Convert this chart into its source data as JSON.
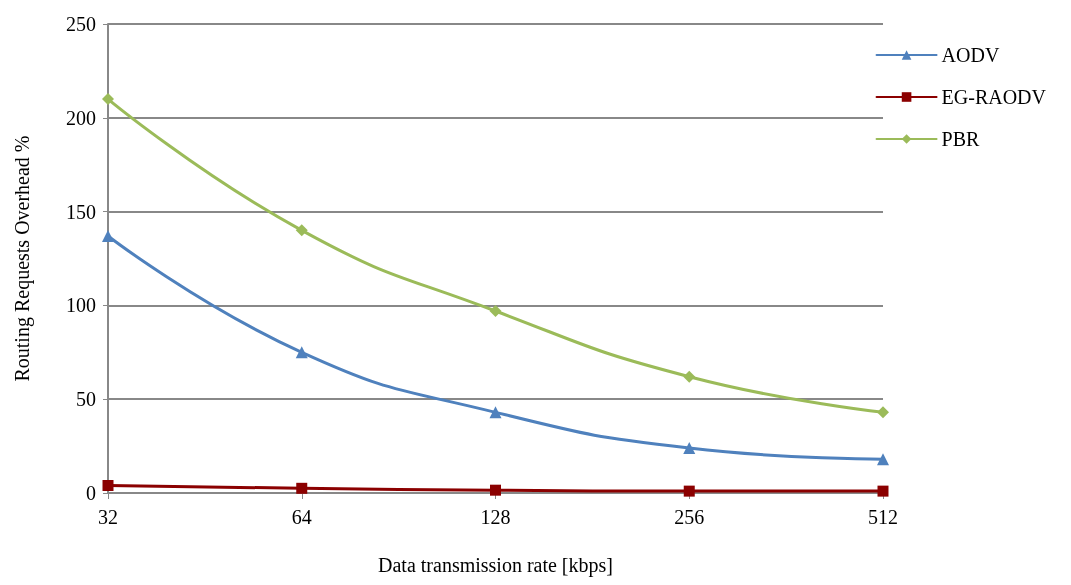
{
  "chart_data": {
    "type": "line",
    "xlabel": "Data transmission rate [kbps]",
    "ylabel": "Routing Requests Overhead %",
    "categories": [
      "32",
      "64",
      "128",
      "256",
      "512"
    ],
    "ylim": [
      0,
      250
    ],
    "yticks": [
      0,
      50,
      100,
      150,
      200,
      250
    ],
    "grid": "y",
    "legend": "right",
    "series": [
      {
        "name": "AODV",
        "color": "#4f81bd",
        "marker": "triangle",
        "values": [
          137,
          75,
          43,
          24,
          18
        ]
      },
      {
        "name": "EG-RAODV",
        "color": "#8b0000",
        "marker": "square",
        "values": [
          4,
          2.5,
          1.5,
          1,
          1
        ]
      },
      {
        "name": "PBR",
        "color": "#9bbb59",
        "marker": "diamond",
        "values": [
          210,
          140,
          97,
          62,
          43
        ]
      }
    ]
  }
}
